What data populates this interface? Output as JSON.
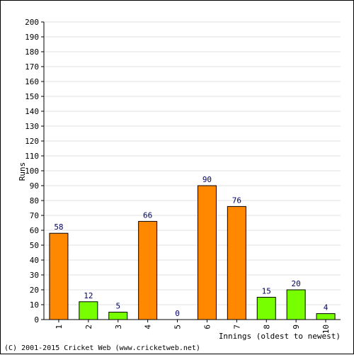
{
  "chart_data": {
    "type": "bar",
    "categories": [
      "1",
      "2",
      "3",
      "4",
      "5",
      "6",
      "7",
      "8",
      "9",
      "10"
    ],
    "values": [
      58,
      12,
      5,
      66,
      0,
      90,
      76,
      15,
      20,
      4
    ],
    "bar_colors": [
      "#ff8800",
      "#77ff00",
      "#77ff00",
      "#ff8800",
      "#77ff00",
      "#ff8800",
      "#ff8800",
      "#77ff00",
      "#77ff00",
      "#77ff00"
    ],
    "value_label_color": "#000066",
    "ylabel": "Runs",
    "xlabel": "Innings (oldest to newest)",
    "ylim": [
      0,
      200
    ],
    "ytick_step": 10,
    "grid": true
  },
  "footer": "(C) 2001-2015 Cricket Web (www.cricketweb.net)"
}
